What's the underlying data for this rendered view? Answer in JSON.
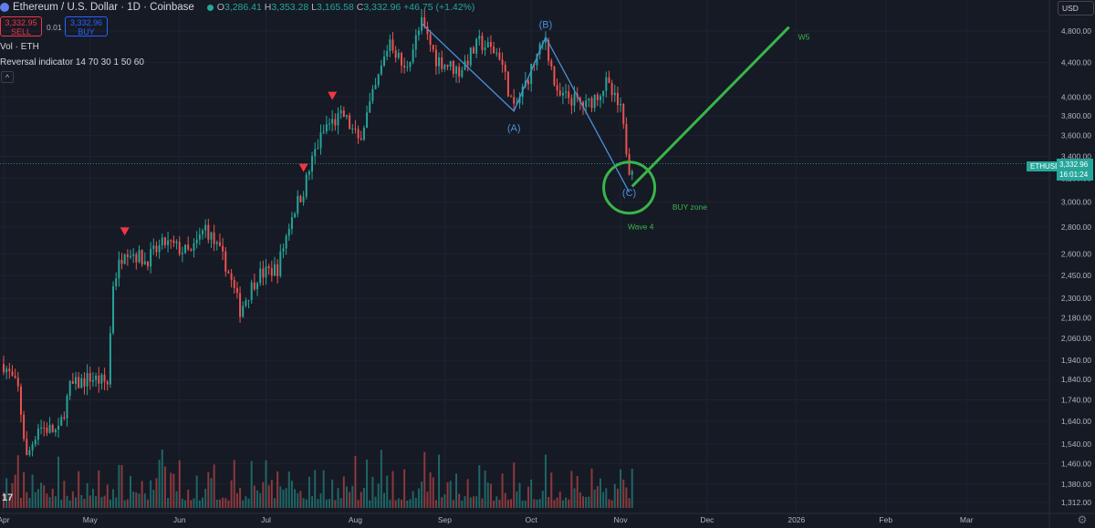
{
  "header": {
    "title": "Ethereum / U.S. Dollar · 1D · Coinbase",
    "ohlc": {
      "o_label": "O",
      "o": "3,286.41",
      "h_label": "H",
      "h": "3,353.28",
      "l_label": "L",
      "l": "3,165.58",
      "c_label": "C",
      "c": "3,332.96",
      "change": "+46.75 (+1.42%)"
    },
    "sell_price": "3,332.95",
    "sell_label": "SELL",
    "buy_price": "3,332.96",
    "buy_label": "BUY",
    "spread": "0.01",
    "currency_button": "USD",
    "indicator_volume": "Vol · ETH",
    "indicator_reversal": "Reversal indicator 14 70 30 1 50 60",
    "collapse_icon": "^",
    "settings_icon": "gear-icon"
  },
  "price_tag": {
    "symbol": "ETHUSD",
    "price": "3,332.96",
    "countdown": "16:01:24"
  },
  "colors": {
    "background": "#161a25",
    "up": "#26a69a",
    "down": "#ef5350",
    "wave_lines": "#4a90d9",
    "annotation": "#39b54a",
    "marker": "#f23645"
  },
  "chart_data": {
    "type": "candlestick",
    "y_scale": "log",
    "ylim": [
      1300,
      5000
    ],
    "y_ticks": [
      "4,800.00",
      "4,400.00",
      "4,000.00",
      "3,800.00",
      "3,600.00",
      "3,400.00",
      "3,200.00",
      "3,000.00",
      "2,800.00",
      "2,600.00",
      "2,450.00",
      "2,300.00",
      "2,180.00",
      "2,060.00",
      "1,940.00",
      "1,840.00",
      "1,740.00",
      "1,640.00",
      "1,540.00",
      "1,460.00",
      "1,380.00",
      "1,312.00"
    ],
    "x_ticks": [
      "Apr",
      "May",
      "Jun",
      "Jul",
      "Aug",
      "Sep",
      "Oct",
      "Nov",
      "Dec",
      "2026",
      "Feb",
      "Mar"
    ],
    "x_range": [
      "2025-04-01",
      "2026-03-31"
    ],
    "price_path": [
      [
        "2025-04-01",
        1920
      ],
      [
        "2025-04-06",
        1790
      ],
      [
        "2025-04-09",
        1480
      ],
      [
        "2025-04-13",
        1620
      ],
      [
        "2025-04-20",
        1590
      ],
      [
        "2025-04-24",
        1800
      ],
      [
        "2025-05-01",
        1850
      ],
      [
        "2025-05-07",
        1820
      ],
      [
        "2025-05-09",
        2400
      ],
      [
        "2025-05-13",
        2650
      ],
      [
        "2025-05-20",
        2550
      ],
      [
        "2025-05-27",
        2680
      ],
      [
        "2025-06-05",
        2600
      ],
      [
        "2025-06-10",
        2800
      ],
      [
        "2025-06-17",
        2530
      ],
      [
        "2025-06-22",
        2230
      ],
      [
        "2025-06-28",
        2450
      ],
      [
        "2025-07-05",
        2500
      ],
      [
        "2025-07-10",
        2900
      ],
      [
        "2025-07-14",
        3100
      ],
      [
        "2025-07-18",
        3450
      ],
      [
        "2025-07-22",
        3700
      ],
      [
        "2025-07-28",
        3800
      ],
      [
        "2025-08-02",
        3550
      ],
      [
        "2025-08-08",
        4100
      ],
      [
        "2025-08-13",
        4700
      ],
      [
        "2025-08-18",
        4300
      ],
      [
        "2025-08-24",
        4900
      ],
      [
        "2025-08-29",
        4450
      ],
      [
        "2025-09-06",
        4300
      ],
      [
        "2025-09-13",
        4650
      ],
      [
        "2025-09-20",
        4500
      ],
      [
        "2025-09-25",
        3850
      ],
      [
        "2025-10-02",
        4400
      ],
      [
        "2025-10-06",
        4700
      ],
      [
        "2025-10-10",
        4000
      ],
      [
        "2025-10-14",
        4000
      ],
      [
        "2025-10-20",
        3900
      ],
      [
        "2025-10-27",
        4150
      ],
      [
        "2025-11-01",
        3850
      ],
      [
        "2025-11-04",
        3300
      ],
      [
        "2025-11-05",
        3333
      ]
    ],
    "volume_scale": "relative",
    "wave_labels": [
      {
        "label": "(A)",
        "date": "2025-09-25",
        "price": 3850
      },
      {
        "label": "(B)",
        "date": "2025-10-06",
        "price": 4720
      },
      {
        "label": "(C)",
        "date": "2025-11-04",
        "price": 3080
      }
    ],
    "wave_lines": [
      [
        "2025-08-24",
        4900
      ],
      [
        "2025-09-25",
        3850
      ],
      [
        "2025-10-06",
        4720
      ],
      [
        "2025-11-04",
        3080
      ]
    ],
    "projection": {
      "label": "W5",
      "from": [
        "2025-11-05",
        3130
      ],
      "to": [
        "2025-12-31",
        5000
      ]
    },
    "annotations": [
      {
        "text": "BUY zone",
        "date": "2025-11-25",
        "price": 2935
      },
      {
        "text": "Wave 4",
        "date": "2025-11-08",
        "price": 2780
      }
    ],
    "reversal_markers": [
      {
        "date": "2025-05-13",
        "price": 2720
      },
      {
        "date": "2025-07-14",
        "price": 3240
      },
      {
        "date": "2025-07-24",
        "price": 3950
      }
    ]
  }
}
